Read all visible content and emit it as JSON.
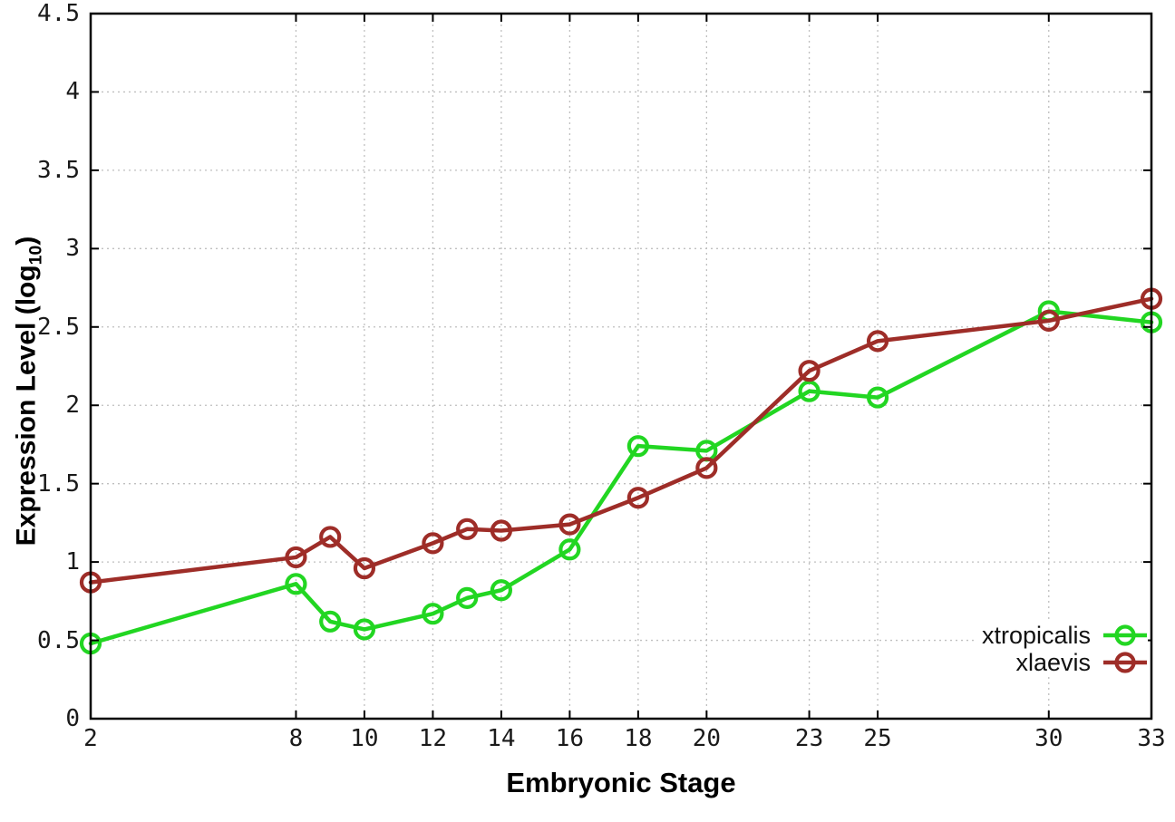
{
  "chart_data": {
    "type": "line",
    "title": "",
    "xlabel": "Embryonic Stage",
    "ylabel": "Expression Level (log10)",
    "ylabel_base": "Expression Level (log",
    "ylabel_sub": "10",
    "ylabel_close": ")",
    "x": [
      2,
      8,
      9,
      10,
      12,
      13,
      14,
      16,
      18,
      20,
      23,
      25,
      30,
      33
    ],
    "series": [
      {
        "name": "xtropicalis",
        "color": "#22d622",
        "values": [
          0.48,
          0.86,
          0.62,
          0.57,
          0.67,
          0.77,
          0.82,
          1.08,
          1.74,
          1.71,
          2.09,
          2.05,
          2.6,
          2.53
        ]
      },
      {
        "name": "xlaevis",
        "color": "#9e2d28",
        "values": [
          0.87,
          1.03,
          1.16,
          0.96,
          1.12,
          1.21,
          1.2,
          1.24,
          1.41,
          1.6,
          2.22,
          2.41,
          2.54,
          2.68
        ]
      }
    ],
    "xlim": [
      2,
      33
    ],
    "ylim": [
      0,
      4.5
    ],
    "xticks": [
      2,
      8,
      10,
      12,
      14,
      16,
      18,
      20,
      23,
      25,
      30,
      33
    ],
    "yticks": [
      0,
      0.5,
      1,
      1.5,
      2,
      2.5,
      3,
      3.5,
      4,
      4.5
    ],
    "ytick_labels": [
      "0",
      "0.5",
      "1",
      "1.5",
      "2",
      "2.5",
      "3",
      "3.5",
      "4",
      "4.5"
    ],
    "grid": true,
    "grid_style": "dotted",
    "legend_position": "bottom-right-inside",
    "marker": "open-circle",
    "colors": {
      "grid": "#bfbfbf",
      "border": "#000000",
      "text": "#1a1a1a"
    }
  }
}
